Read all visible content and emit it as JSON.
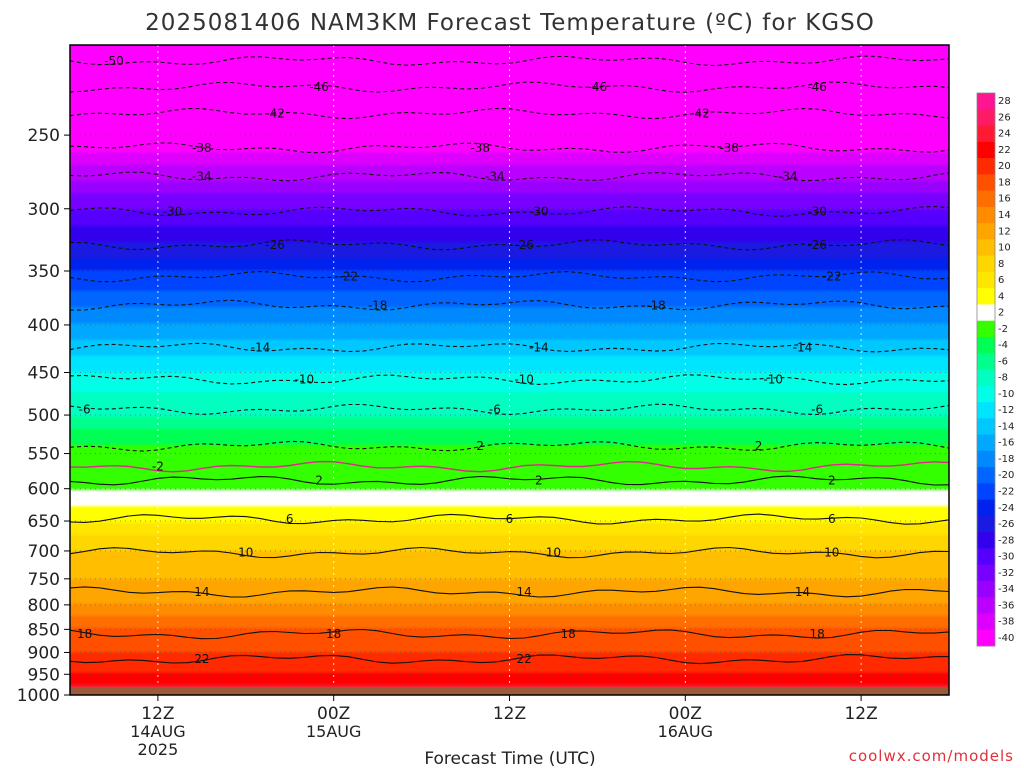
{
  "chart_data": {
    "type": "heatmap",
    "title": "2025081406 NAM3KM Forecast Temperature (ºC) for KGSO",
    "xlabel": "Forecast Time (UTC)",
    "ylabel": "",
    "watermark": "coolwx.com/models",
    "y_axis": {
      "scale": "log-pressure",
      "range_hpa": [
        1000,
        200
      ],
      "ticks": [
        "250",
        "300",
        "350",
        "400",
        "450",
        "500",
        "550",
        "600",
        "650",
        "700",
        "750",
        "800",
        "850",
        "900",
        "950",
        "1000"
      ]
    },
    "x_axis": {
      "range": [
        "2025-08-14 06Z",
        "2025-08-16 18Z"
      ],
      "ticks": [
        {
          "t": "2025-08-14 12Z",
          "lines": [
            "12Z",
            "14AUG",
            "2025"
          ]
        },
        {
          "t": "2025-08-15 00Z",
          "lines": [
            "00Z",
            "15AUG"
          ]
        },
        {
          "t": "2025-08-15 12Z",
          "lines": [
            "12Z"
          ]
        },
        {
          "t": "2025-08-16 00Z",
          "lines": [
            "00Z",
            "16AUG"
          ]
        },
        {
          "t": "2025-08-16 12Z",
          "lines": [
            "12Z"
          ]
        }
      ],
      "grid": true
    },
    "surface_pressure_hpa": 980,
    "surface_color": "#9b5a3a",
    "profile_typical": [
      {
        "p": 200,
        "t": -52
      },
      {
        "p": 230,
        "t": -46
      },
      {
        "p": 250,
        "t": -40
      },
      {
        "p": 300,
        "t": -30
      },
      {
        "p": 350,
        "t": -22
      },
      {
        "p": 400,
        "t": -16
      },
      {
        "p": 450,
        "t": -10
      },
      {
        "p": 500,
        "t": -6
      },
      {
        "p": 550,
        "t": -1
      },
      {
        "p": 600,
        "t": 2
      },
      {
        "p": 650,
        "t": 6
      },
      {
        "p": 700,
        "t": 10
      },
      {
        "p": 800,
        "t": 14
      },
      {
        "p": 850,
        "t": 18
      },
      {
        "p": 950,
        "t": 22
      },
      {
        "p": 1000,
        "t": 26
      }
    ],
    "contours": [
      {
        "level": -50,
        "style": "dashed",
        "p": 208,
        "labels": [
          "2025-08-14 09Z"
        ]
      },
      {
        "level": -46,
        "style": "dashed",
        "p": 222,
        "labels": [
          "2025-08-14 23Z",
          "2025-08-15 18Z",
          "2025-08-16 09Z"
        ]
      },
      {
        "level": -42,
        "style": "dashed",
        "p": 237,
        "labels": [
          "2025-08-14 20Z",
          "2025-08-16 01Z"
        ]
      },
      {
        "level": -38,
        "style": "dashed",
        "p": 258,
        "labels": [
          "2025-08-14 15Z",
          "2025-08-15 10Z",
          "2025-08-16 03Z"
        ]
      },
      {
        "level": -34,
        "style": "dashed",
        "p": 277,
        "labels": [
          "2025-08-14 15Z",
          "2025-08-15 11Z",
          "2025-08-16 07Z"
        ]
      },
      {
        "level": -30,
        "style": "dashed",
        "p": 302,
        "labels": [
          "2025-08-14 13Z",
          "2025-08-15 14Z",
          "2025-08-16 09Z"
        ]
      },
      {
        "level": -26,
        "style": "dashed",
        "p": 328,
        "labels": [
          "2025-08-14 20Z",
          "2025-08-15 13Z",
          "2025-08-16 09Z"
        ]
      },
      {
        "level": -22,
        "style": "dashed",
        "p": 355,
        "labels": [
          "2025-08-15 01Z",
          "2025-08-16 10Z"
        ]
      },
      {
        "level": -18,
        "style": "dashed",
        "p": 381,
        "labels": [
          "2025-08-15 03Z",
          "2025-08-15 22Z"
        ]
      },
      {
        "level": -14,
        "style": "dashed",
        "p": 423,
        "labels": [
          "2025-08-14 19Z",
          "2025-08-15 14Z",
          "2025-08-16 08Z"
        ]
      },
      {
        "level": -10,
        "style": "dashed",
        "p": 458,
        "labels": [
          "2025-08-14 22Z",
          "2025-08-15 13Z",
          "2025-08-16 06Z"
        ]
      },
      {
        "level": -6,
        "style": "dashed",
        "p": 493,
        "labels": [
          "2025-08-14 07Z",
          "2025-08-15 11Z",
          "2025-08-16 09Z"
        ]
      },
      {
        "level": -2,
        "style": "dotted-magenta",
        "p": 568,
        "labels": [
          "2025-08-14 12Z"
        ]
      },
      {
        "level": 2,
        "style": "dashed",
        "p": 540,
        "labels": [
          "2025-08-15 10Z",
          "2025-08-16 05Z"
        ]
      },
      {
        "level": 2,
        "style": "solid",
        "p": 588,
        "labels": [
          "2025-08-14 23Z",
          "2025-08-15 14Z",
          "2025-08-16 10Z"
        ]
      },
      {
        "level": 6,
        "style": "solid",
        "p": 647,
        "labels": [
          "2025-08-14 21Z",
          "2025-08-15 12Z",
          "2025-08-16 10Z"
        ]
      },
      {
        "level": 10,
        "style": "solid",
        "p": 703,
        "labels": [
          "2025-08-14 18Z",
          "2025-08-15 15Z",
          "2025-08-16 10Z"
        ]
      },
      {
        "level": 14,
        "style": "solid",
        "p": 775,
        "labels": [
          "2025-08-14 15Z",
          "2025-08-15 13Z",
          "2025-08-16 08Z"
        ]
      },
      {
        "level": 18,
        "style": "solid",
        "p": 860,
        "labels": [
          "2025-08-14 07Z",
          "2025-08-15 00Z",
          "2025-08-15 16Z",
          "2025-08-16 09Z"
        ]
      },
      {
        "level": 22,
        "style": "solid",
        "p": 915,
        "labels": [
          "2025-08-14 15Z",
          "2025-08-15 13Z"
        ]
      }
    ],
    "colorbar": {
      "labels": [
        "28",
        "26",
        "24",
        "22",
        "20",
        "18",
        "16",
        "14",
        "12",
        "10",
        "8",
        "6",
        "4",
        "2",
        "-2",
        "-4",
        "-6",
        "-8",
        "-10",
        "-12",
        "-14",
        "-16",
        "-18",
        "-20",
        "-22",
        "-24",
        "-26",
        "-28",
        "-30",
        "-32",
        "-34",
        "-36",
        "-38",
        "-40"
      ],
      "colors": [
        "#ff1493",
        "#ff1a66",
        "#ff1a33",
        "#ff0000",
        "#ff2a00",
        "#ff5000",
        "#ff6e00",
        "#ff8c00",
        "#ffa500",
        "#ffbf00",
        "#ffd700",
        "#ffe600",
        "#ffff00",
        "#ffffff",
        "#33ff00",
        "#00ff55",
        "#00ff8c",
        "#00ffc0",
        "#00ffe6",
        "#00e5ff",
        "#00c8ff",
        "#00a8ff",
        "#0088ff",
        "#0066ff",
        "#0044ff",
        "#0022ee",
        "#1a1ae0",
        "#3300ee",
        "#5500ff",
        "#7700ff",
        "#9900ff",
        "#bb00ff",
        "#dd00ff",
        "#ff00ff"
      ]
    }
  }
}
